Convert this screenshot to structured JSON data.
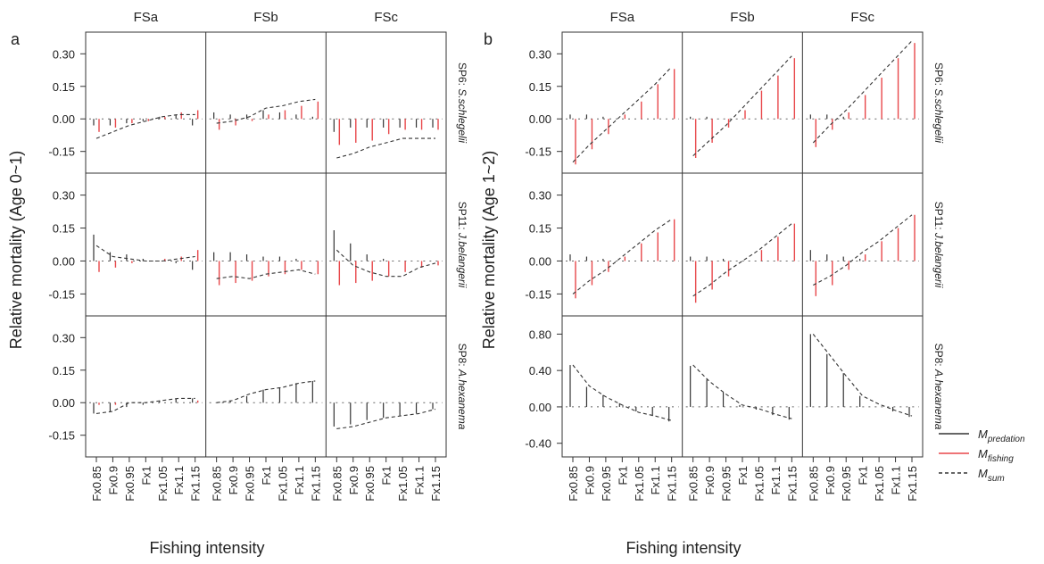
{
  "figure": {
    "xlabel": "Fishing intensity",
    "columns": [
      "FSa",
      "FSb",
      "FSc"
    ]
  },
  "legend": {
    "items": [
      {
        "symbol": "M",
        "sub": "predation",
        "color": "#333333",
        "dash": ""
      },
      {
        "symbol": "M",
        "sub": "fishing",
        "color": "#e8474a",
        "dash": ""
      },
      {
        "symbol": "M",
        "sub": "sum",
        "color": "#333333",
        "dash": "4,3"
      }
    ]
  },
  "colors": {
    "predation": "#333333",
    "fishing": "#e8474a",
    "sum": "#333333",
    "frame": "#333333"
  },
  "chart_data": [
    {
      "panel": "a",
      "type": "line",
      "ylabel": "Relative mortality (Age 0~1)",
      "x": [
        "Fx0.85",
        "Fx0.9",
        "Fx0.95",
        "Fx1",
        "Fx1.05",
        "Fx1.1",
        "Fx1.15"
      ],
      "columns": [
        "FSa",
        "FSb",
        "FSc"
      ],
      "rows": [
        {
          "label_prefix": "SP6: ",
          "label_species": "S.schlegelii",
          "ylim": [
            -0.25,
            0.4
          ],
          "yticks": [
            0.3,
            0.15,
            0.0,
            -0.15
          ],
          "ytick_labels": [
            "0.30",
            "0.15",
            "0.00",
            "-0.15"
          ],
          "cells": [
            {
              "M_predation": [
                -0.03,
                -0.03,
                -0.02,
                -0.01,
                0.01,
                0.02,
                -0.03
              ],
              "M_fishing": [
                -0.06,
                -0.04,
                -0.02,
                -0.01,
                0.01,
                0.03,
                0.04
              ],
              "M_sum": [
                -0.09,
                -0.06,
                -0.03,
                -0.01,
                0.01,
                0.02,
                0.02
              ]
            },
            {
              "M_predation": [
                0.03,
                0.02,
                0.02,
                0.04,
                0.03,
                0.02,
                0.01
              ],
              "M_fishing": [
                -0.05,
                -0.03,
                -0.01,
                0.02,
                0.04,
                0.06,
                0.08
              ],
              "M_sum": [
                -0.02,
                -0.01,
                0.01,
                0.05,
                0.06,
                0.08,
                0.09
              ]
            },
            {
              "M_predation": [
                -0.06,
                -0.04,
                -0.04,
                -0.04,
                -0.04,
                -0.04,
                -0.04
              ],
              "M_fishing": [
                -0.12,
                -0.11,
                -0.1,
                -0.07,
                -0.05,
                -0.05,
                -0.05
              ],
              "M_sum": [
                -0.18,
                -0.16,
                -0.13,
                -0.11,
                -0.09,
                -0.09,
                -0.09
              ]
            }
          ]
        },
        {
          "label_prefix": "SP11: ",
          "label_species": "J.belangerii",
          "ylim": [
            -0.25,
            0.4
          ],
          "yticks": [
            0.3,
            0.15,
            0.0,
            -0.15
          ],
          "ytick_labels": [
            "0.30",
            "0.15",
            "0.00",
            "-0.15"
          ],
          "cells": [
            {
              "M_predation": [
                0.12,
                0.04,
                0.03,
                0.01,
                0.0,
                -0.01,
                -0.04
              ],
              "M_fishing": [
                -0.05,
                -0.03,
                -0.01,
                0.0,
                0.01,
                0.02,
                0.05
              ],
              "M_sum": [
                0.07,
                0.02,
                0.01,
                0.0,
                0.0,
                0.01,
                0.02
              ]
            },
            {
              "M_predation": [
                0.04,
                0.04,
                0.03,
                0.02,
                0.02,
                0.01,
                0.0
              ],
              "M_fishing": [
                -0.11,
                -0.1,
                -0.09,
                -0.07,
                -0.06,
                -0.04,
                -0.06
              ],
              "M_sum": [
                -0.08,
                -0.07,
                -0.08,
                -0.06,
                -0.05,
                -0.04,
                -0.06
              ]
            },
            {
              "M_predation": [
                0.14,
                0.08,
                0.03,
                0.01,
                0.0,
                0.0,
                0.0
              ],
              "M_fishing": [
                -0.11,
                -0.1,
                -0.09,
                -0.07,
                -0.05,
                -0.03,
                -0.02
              ],
              "M_sum": [
                0.05,
                -0.02,
                -0.05,
                -0.07,
                -0.07,
                -0.03,
                -0.01
              ]
            }
          ]
        },
        {
          "label_prefix": "SP8: ",
          "label_species": "A.hexanema",
          "ylim": [
            -0.25,
            0.4
          ],
          "yticks": [
            0.3,
            0.15,
            0.0,
            -0.15
          ],
          "ytick_labels": [
            "0.30",
            "0.15",
            "0.00",
            "-0.15"
          ],
          "cells": [
            {
              "M_predation": [
                -0.05,
                -0.04,
                -0.02,
                -0.01,
                0.01,
                0.02,
                0.02
              ],
              "M_fishing": [
                -0.01,
                -0.01,
                0.0,
                0.0,
                0.0,
                0.0,
                0.01
              ],
              "M_sum": [
                -0.05,
                -0.04,
                0.0,
                0.0,
                0.01,
                0.02,
                0.02
              ]
            },
            {
              "M_predation": [
                0.0,
                0.01,
                0.03,
                0.06,
                0.07,
                0.09,
                0.1
              ],
              "M_fishing": [
                0.0,
                0.0,
                0.0,
                0.0,
                0.0,
                0.0,
                0.0
              ],
              "M_sum": [
                0.0,
                0.01,
                0.04,
                0.06,
                0.07,
                0.09,
                0.1
              ]
            },
            {
              "M_predation": [
                -0.11,
                -0.1,
                -0.08,
                -0.07,
                -0.06,
                -0.05,
                -0.03
              ],
              "M_fishing": [
                0.0,
                0.0,
                0.0,
                0.0,
                0.0,
                0.0,
                0.0
              ],
              "M_sum": [
                -0.12,
                -0.11,
                -0.09,
                -0.07,
                -0.06,
                -0.05,
                -0.03
              ]
            }
          ]
        }
      ]
    },
    {
      "panel": "b",
      "type": "line",
      "ylabel": "Relative mortality (Age 1~2)",
      "x": [
        "Fx0.85",
        "Fx0.9",
        "Fx0.95",
        "Fx1",
        "Fx1.05",
        "Fx1.1",
        "Fx1.15"
      ],
      "columns": [
        "FSa",
        "FSb",
        "FSc"
      ],
      "rows": [
        {
          "label_prefix": "SP6: ",
          "label_species": "S.schlegelii",
          "ylim": [
            -0.25,
            0.4
          ],
          "yticks": [
            0.3,
            0.15,
            0.0,
            -0.15
          ],
          "ytick_labels": [
            "0.30",
            "0.15",
            "0.00",
            "-0.15"
          ],
          "cells": [
            {
              "M_predation": [
                0.02,
                0.02,
                0.01,
                0.0,
                0.0,
                0.0,
                0.0
              ],
              "M_fishing": [
                -0.21,
                -0.14,
                -0.07,
                0.02,
                0.08,
                0.16,
                0.23
              ],
              "M_sum": [
                -0.2,
                -0.12,
                -0.05,
                0.02,
                0.09,
                0.16,
                0.24
              ]
            },
            {
              "M_predation": [
                0.01,
                0.01,
                0.0,
                0.0,
                0.0,
                0.0,
                0.0
              ],
              "M_fishing": [
                -0.18,
                -0.11,
                -0.04,
                0.04,
                0.13,
                0.2,
                0.28
              ],
              "M_sum": [
                -0.17,
                -0.1,
                -0.03,
                0.05,
                0.13,
                0.21,
                0.29
              ]
            },
            {
              "M_predation": [
                0.02,
                0.02,
                0.01,
                0.0,
                0.0,
                0.0,
                0.0
              ],
              "M_fishing": [
                -0.13,
                -0.05,
                0.03,
                0.11,
                0.19,
                0.28,
                0.35
              ],
              "M_sum": [
                -0.11,
                -0.03,
                0.04,
                0.12,
                0.2,
                0.28,
                0.36
              ]
            }
          ]
        },
        {
          "label_prefix": "SP11: ",
          "label_species": "J.belangerii",
          "ylim": [
            -0.25,
            0.4
          ],
          "yticks": [
            0.3,
            0.15,
            0.0,
            -0.15
          ],
          "ytick_labels": [
            "0.30",
            "0.15",
            "0.00",
            "-0.15"
          ],
          "cells": [
            {
              "M_predation": [
                0.03,
                0.02,
                0.01,
                0.0,
                0.0,
                0.0,
                0.0
              ],
              "M_fishing": [
                -0.17,
                -0.11,
                -0.05,
                0.02,
                0.08,
                0.13,
                0.19
              ],
              "M_sum": [
                -0.15,
                -0.09,
                -0.04,
                0.02,
                0.08,
                0.14,
                0.19
              ]
            },
            {
              "M_predation": [
                0.02,
                0.02,
                0.01,
                0.0,
                0.0,
                0.0,
                0.0
              ],
              "M_fishing": [
                -0.19,
                -0.13,
                -0.07,
                0.0,
                0.05,
                0.11,
                0.17
              ],
              "M_sum": [
                -0.16,
                -0.11,
                -0.05,
                0.0,
                0.05,
                0.11,
                0.17
              ]
            },
            {
              "M_predation": [
                0.05,
                0.03,
                0.02,
                0.01,
                0.0,
                0.0,
                0.0
              ],
              "M_fishing": [
                -0.16,
                -0.11,
                -0.04,
                0.03,
                0.09,
                0.15,
                0.21
              ],
              "M_sum": [
                -0.11,
                -0.07,
                -0.02,
                0.04,
                0.09,
                0.15,
                0.21
              ]
            }
          ]
        },
        {
          "label_prefix": "SP8: ",
          "label_species": "A.hexanema",
          "ylim": [
            -0.55,
            1.0
          ],
          "yticks": [
            0.8,
            0.4,
            0.0,
            -0.4
          ],
          "ytick_labels": [
            "0.80",
            "0.40",
            "0.00",
            "-0.40"
          ],
          "cells": [
            {
              "M_predation": [
                0.46,
                0.22,
                0.13,
                0.04,
                -0.05,
                -0.1,
                -0.16
              ],
              "M_fishing": [
                0.0,
                0.0,
                0.0,
                0.0,
                0.0,
                0.0,
                0.0
              ],
              "M_sum": [
                0.46,
                0.23,
                0.11,
                0.02,
                -0.06,
                -0.1,
                -0.15
              ]
            },
            {
              "M_predation": [
                0.45,
                0.3,
                0.16,
                0.02,
                -0.03,
                -0.09,
                -0.14
              ],
              "M_fishing": [
                0.0,
                0.0,
                0.0,
                0.0,
                0.0,
                0.0,
                0.0
              ],
              "M_sum": [
                0.46,
                0.28,
                0.14,
                0.02,
                -0.02,
                -0.08,
                -0.13
              ]
            },
            {
              "M_predation": [
                0.8,
                0.58,
                0.37,
                0.12,
                0.0,
                -0.05,
                -0.11
              ],
              "M_fishing": [
                0.0,
                0.0,
                0.0,
                0.0,
                0.0,
                0.0,
                0.0
              ],
              "M_sum": [
                0.8,
                0.57,
                0.34,
                0.12,
                0.03,
                -0.04,
                -0.1
              ]
            }
          ]
        }
      ]
    }
  ]
}
